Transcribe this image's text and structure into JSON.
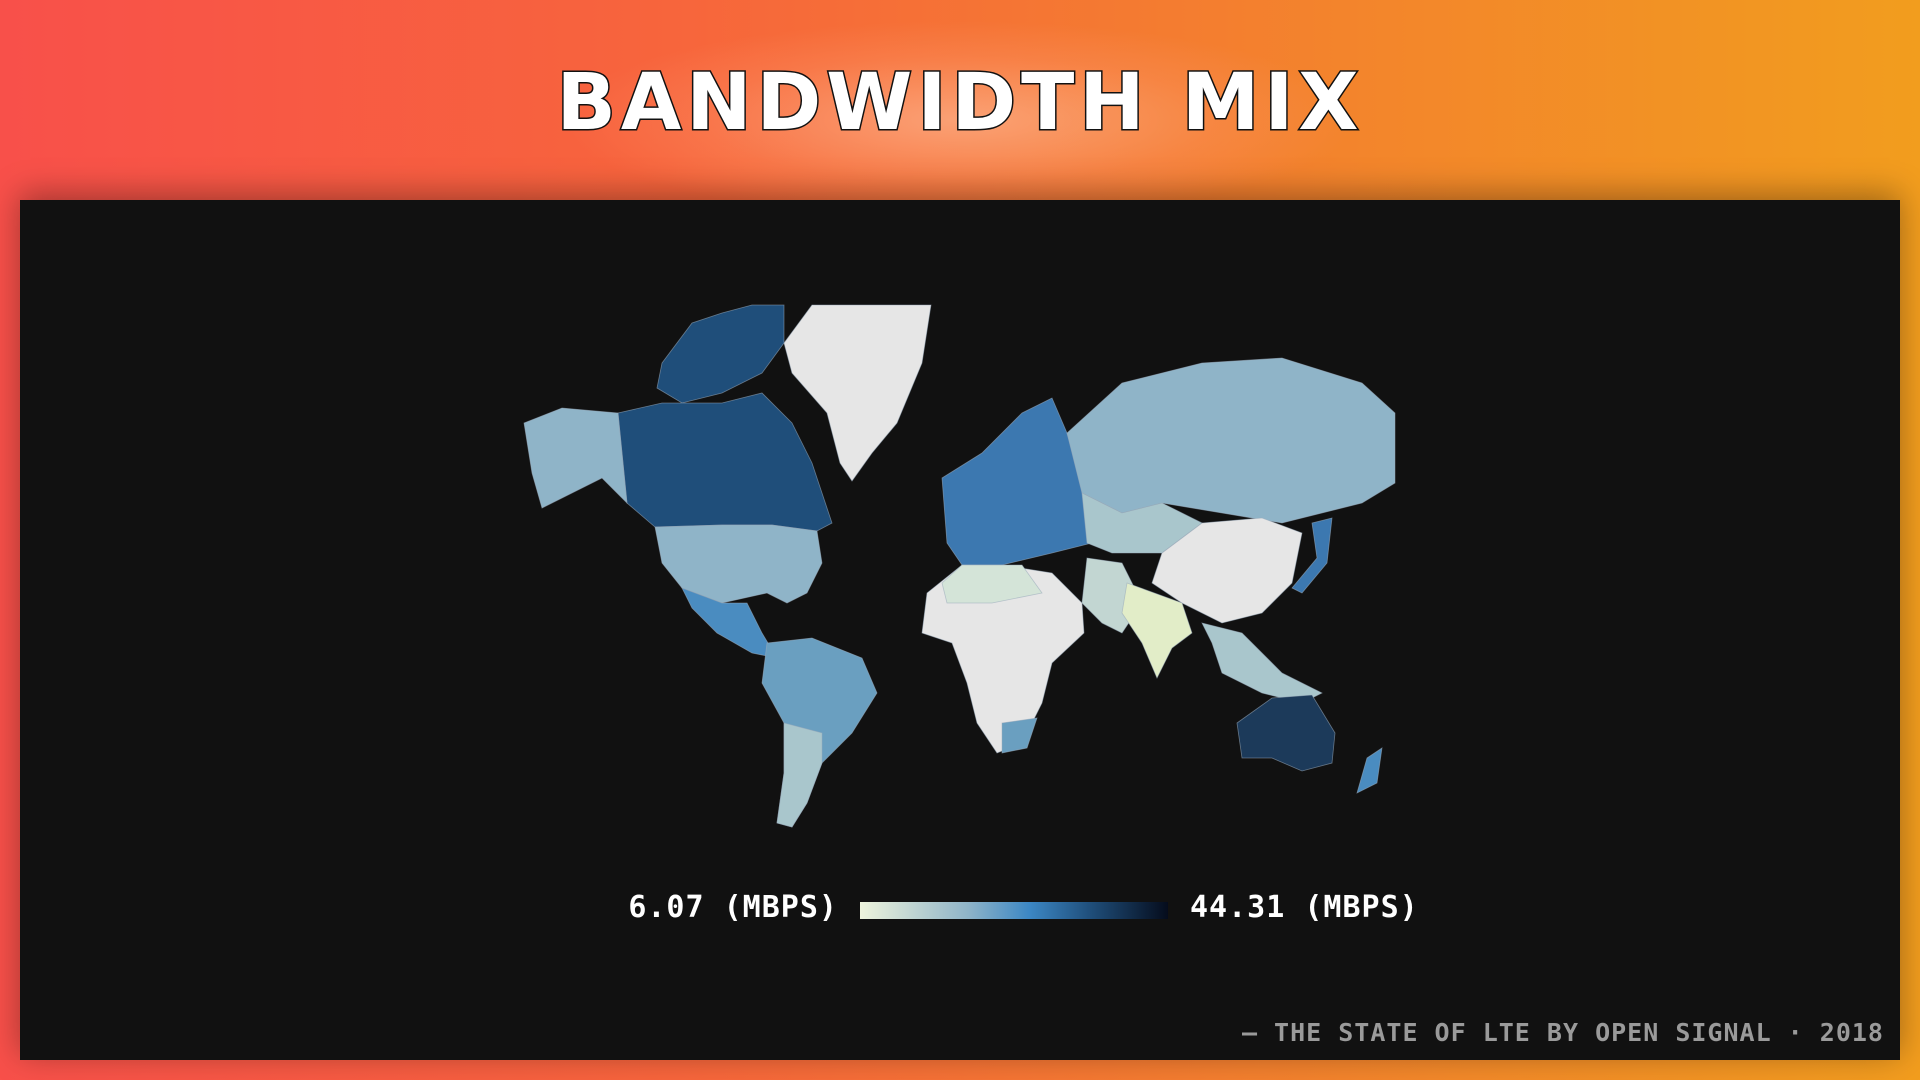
{
  "title": "BANDWIDTH MIX",
  "legend": {
    "min_label": "6.07 (MBPS)",
    "max_label": "44.31 (MBPS)",
    "min_value": 6.07,
    "max_value": 44.31,
    "unit": "MBPS",
    "scale_colors": [
      "#eef4dc",
      "#8fb4c8",
      "#3c87c4",
      "#1f4e7a",
      "#050c1c"
    ],
    "no_data_color": "#e6e6e6"
  },
  "footer": "— THE STATE OF LTE BY OPEN SIGNAL · 2018",
  "colors": {
    "panel": "#111111",
    "accent_left": "#f8504a",
    "accent_right": "#f29d1e"
  }
}
